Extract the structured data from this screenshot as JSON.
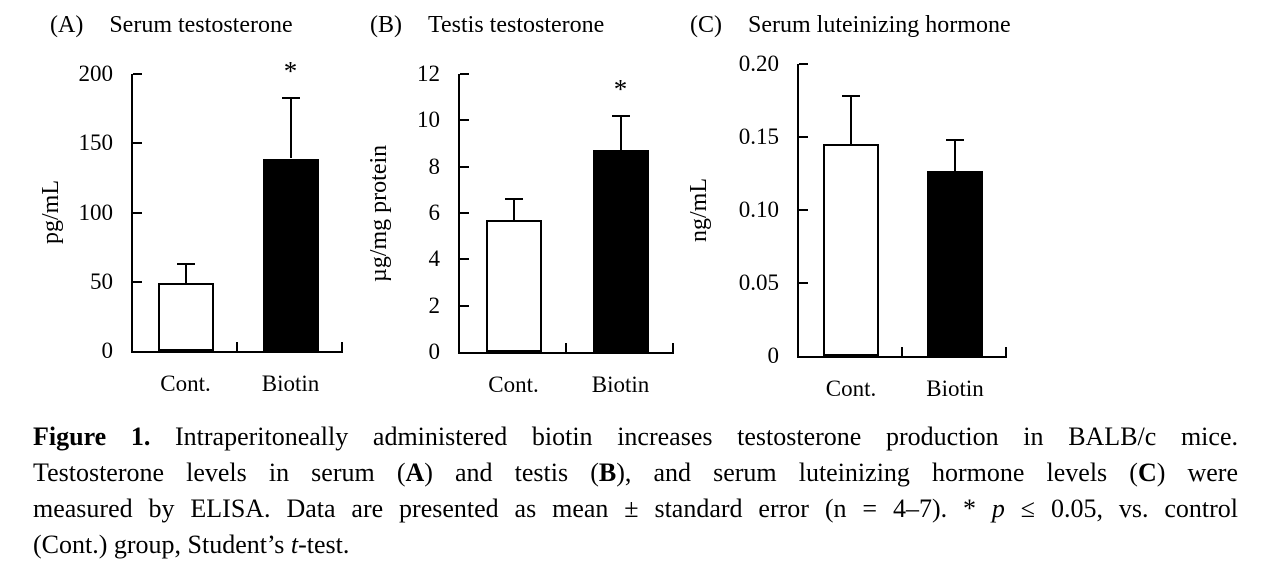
{
  "chart_data": [
    {
      "type": "bar",
      "panel": "(A)",
      "title": "Serum testosterone",
      "ylabel": "pg/mL",
      "ylim": [
        0,
        200
      ],
      "yticks": [
        {
          "value": 0,
          "label": "0"
        },
        {
          "value": 50,
          "label": "50"
        },
        {
          "value": 100,
          "label": "100"
        },
        {
          "value": 150,
          "label": "150"
        },
        {
          "value": 200,
          "label": "200"
        }
      ],
      "categories": [
        "Cont.",
        "Biotin"
      ],
      "bars": [
        {
          "category": "Cont.",
          "value": 49,
          "error": 14,
          "fill": "#ffffff",
          "significant": false
        },
        {
          "category": "Biotin",
          "value": 139,
          "error": 44,
          "fill": "#000000",
          "significant": true
        }
      ],
      "significance_marker": "*",
      "grid": false,
      "legend": false
    },
    {
      "type": "bar",
      "panel": "(B)",
      "title": "Testis testosterone",
      "ylabel": "µg/mg protein",
      "ylim": [
        0,
        12
      ],
      "yticks": [
        {
          "value": 0,
          "label": "0"
        },
        {
          "value": 2,
          "label": "2"
        },
        {
          "value": 4,
          "label": "4"
        },
        {
          "value": 6,
          "label": "6"
        },
        {
          "value": 8,
          "label": "8"
        },
        {
          "value": 10,
          "label": "10"
        },
        {
          "value": 12,
          "label": "12"
        }
      ],
      "categories": [
        "Cont.",
        "Biotin"
      ],
      "bars": [
        {
          "category": "Cont.",
          "value": 5.7,
          "error": 0.9,
          "fill": "#ffffff",
          "significant": false
        },
        {
          "category": "Biotin",
          "value": 8.7,
          "error": 1.5,
          "fill": "#000000",
          "significant": true
        }
      ],
      "significance_marker": "*",
      "grid": false,
      "legend": false
    },
    {
      "type": "bar",
      "panel": "(C)",
      "title": "Serum luteinizing hormone",
      "ylabel": "ng/mL",
      "ylim": [
        0,
        0.2
      ],
      "yticks": [
        {
          "value": 0,
          "label": "0"
        },
        {
          "value": 0.05,
          "label": "0.05"
        },
        {
          "value": 0.1,
          "label": "0.10"
        },
        {
          "value": 0.15,
          "label": "0.15"
        },
        {
          "value": 0.2,
          "label": "0.20"
        }
      ],
      "categories": [
        "Cont.",
        "Biotin"
      ],
      "bars": [
        {
          "category": "Cont.",
          "value": 0.145,
          "error": 0.033,
          "fill": "#ffffff",
          "significant": false
        },
        {
          "category": "Biotin",
          "value": 0.127,
          "error": 0.021,
          "fill": "#000000",
          "significant": false
        }
      ],
      "significance_marker": "*",
      "grid": false,
      "legend": false
    }
  ],
  "caption": {
    "lines": [
      [
        {
          "t": "Figure 1.",
          "b": true
        },
        {
          "t": " Intraperitoneally administered biotin increases testosterone production in BALB/c mice."
        }
      ],
      [
        {
          "t": "Testosterone levels in serum ("
        },
        {
          "t": "A",
          "b": true
        },
        {
          "t": ") and testis ("
        },
        {
          "t": "B",
          "b": true
        },
        {
          "t": "), and serum luteinizing hormone levels ("
        },
        {
          "t": "C",
          "b": true
        },
        {
          "t": ") were"
        }
      ],
      [
        {
          "t": "measured by ELISA. Data are presented as mean ± standard error (n = 4–7). * "
        },
        {
          "t": "p",
          "i": true
        },
        {
          "t": " ≤ 0.05, vs. control"
        }
      ],
      [
        {
          "t": "(Cont.) group, Student’s "
        },
        {
          "t": "t",
          "i": true
        },
        {
          "t": "-test."
        }
      ]
    ]
  }
}
